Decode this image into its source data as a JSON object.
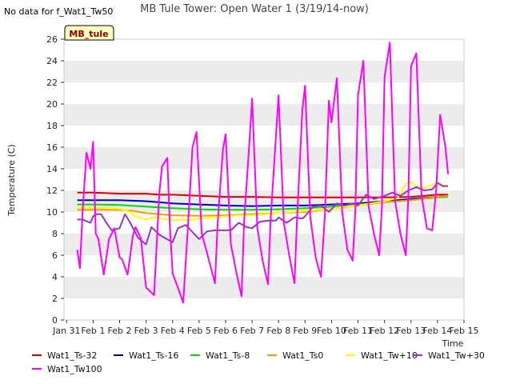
{
  "no_data_note": "No data for f_Wat1_Tw50",
  "site_badge": "MB_tule",
  "colors": {
    "band": "#ececec",
    "badge_fill": "#ffffc0",
    "series": {
      "Wat1_Ts-32": "#dd0000",
      "Wat1_Ts-16": "#0000cc",
      "Wat1_Ts-8": "#00dd00",
      "Wat1_Ts0": "#ff9900",
      "Wat1_Tw+10": "#ffff00",
      "Wat1_Tw+30": "#9933cc",
      "Wat1_Tw100": "#ff00ff"
    }
  },
  "chart_data": {
    "type": "line",
    "title": "MB Tule Tower: Open Water 1 (3/19/14-now)",
    "xlabel": "Time",
    "ylabel": "Temperature (C)",
    "xlim": [
      -0.1,
      15
    ],
    "ylim": [
      0,
      26
    ],
    "x_ticks": [
      0,
      1,
      2,
      3,
      4,
      5,
      6,
      7,
      8,
      9,
      10,
      11,
      12,
      13,
      14,
      15
    ],
    "x_tick_labels": [
      "Jan 31",
      "Feb 1",
      "Feb 2",
      "Feb 3",
      "Feb 4",
      "Feb 5",
      "Feb 6",
      "Feb 7",
      "Feb 8",
      "Feb 9",
      "Feb 10",
      "Feb 11",
      "Feb 12",
      "Feb 13",
      "Feb 14",
      "Feb 15"
    ],
    "y_ticks": [
      0,
      2,
      4,
      6,
      8,
      10,
      12,
      14,
      16,
      18,
      20,
      22,
      24,
      26
    ],
    "y_tick_labels": [
      "0",
      "2",
      "4",
      "6",
      "8",
      "10",
      "12",
      "14",
      "16",
      "18",
      "20",
      "22",
      "24",
      "26"
    ],
    "legend_position": "bottom",
    "series": [
      {
        "name": "Wat1_Ts-32",
        "x": [
          0.4,
          1,
          2,
          3,
          3.5,
          4,
          5,
          6,
          7,
          8,
          9,
          10,
          11,
          12,
          13,
          13.5,
          14,
          14.4
        ],
        "y": [
          11.8,
          11.8,
          11.7,
          11.7,
          11.6,
          11.6,
          11.5,
          11.4,
          11.4,
          11.35,
          11.35,
          11.35,
          11.35,
          11.35,
          11.4,
          11.5,
          11.6,
          11.6
        ]
      },
      {
        "name": "Wat1_Ts-16",
        "x": [
          0.4,
          1,
          2,
          3,
          4,
          5,
          6,
          7,
          8,
          9,
          10,
          11,
          12,
          13,
          14,
          14.4
        ],
        "y": [
          11.1,
          11.1,
          11.1,
          11.0,
          10.8,
          10.7,
          10.6,
          10.55,
          10.6,
          10.6,
          10.7,
          10.8,
          11.0,
          11.2,
          11.4,
          11.5
        ]
      },
      {
        "name": "Wat1_Ts-8",
        "x": [
          0.4,
          1,
          2,
          3,
          4,
          5,
          6,
          7,
          8,
          9,
          10,
          11,
          12,
          13,
          14,
          14.4
        ],
        "y": [
          10.7,
          10.7,
          10.65,
          10.5,
          10.35,
          10.25,
          10.2,
          10.2,
          10.25,
          10.35,
          10.5,
          10.7,
          10.9,
          11.1,
          11.35,
          11.4
        ]
      },
      {
        "name": "Wat1_Ts0",
        "x": [
          0.4,
          1,
          2,
          2.5,
          3,
          3.5,
          4,
          5,
          6,
          7,
          8,
          9,
          10,
          11,
          12,
          13,
          14,
          14.4
        ],
        "y": [
          10.2,
          10.2,
          10.2,
          10.1,
          9.9,
          9.8,
          9.7,
          9.65,
          9.7,
          9.8,
          9.9,
          10.0,
          10.3,
          10.6,
          10.9,
          11.1,
          11.4,
          11.5
        ]
      },
      {
        "name": "Wat1_Tw+10",
        "x": [
          0.4,
          1,
          2,
          2.3,
          2.6,
          3,
          3.3,
          3.6,
          4,
          4.3,
          4.6,
          5,
          5.5,
          6,
          6.5,
          7,
          7.5,
          8,
          8.5,
          9,
          9.5,
          10,
          10.5,
          11,
          11.5,
          12,
          12.5,
          12.8,
          13,
          13.2,
          13.5,
          13.8,
          14,
          14.2,
          14.4
        ],
        "y": [
          10.4,
          10.4,
          10.3,
          10.1,
          9.6,
          9.3,
          9.5,
          9.4,
          9.2,
          9.3,
          9.2,
          9.4,
          9.5,
          9.6,
          9.7,
          9.7,
          9.8,
          9.9,
          10.0,
          10.1,
          10.2,
          10.3,
          10.5,
          10.6,
          10.8,
          11.0,
          11.3,
          12.6,
          12.8,
          12.4,
          12.2,
          12.5,
          12.7,
          12.5,
          12.4
        ]
      },
      {
        "name": "Wat1_Tw+30",
        "x": [
          0.4,
          0.6,
          0.9,
          1.0,
          1.1,
          1.3,
          1.5,
          1.7,
          2.0,
          2.2,
          2.4,
          2.7,
          3.0,
          3.2,
          3.5,
          3.7,
          4.0,
          4.2,
          4.5,
          4.8,
          5.0,
          5.3,
          5.6,
          5.9,
          6.2,
          6.5,
          6.8,
          7.0,
          7.3,
          7.6,
          7.9,
          8.0,
          8.3,
          8.6,
          8.9,
          9.0,
          9.3,
          9.6,
          9.9,
          10.2,
          10.5,
          10.8,
          11.0,
          11.3,
          11.6,
          12.0,
          12.3,
          12.6,
          12.9,
          13.2,
          13.5,
          13.8,
          14.0,
          14.2,
          14.4
        ],
        "y": [
          9.3,
          9.3,
          9.0,
          9.6,
          9.8,
          9.8,
          9.0,
          8.3,
          8.5,
          9.8,
          9.0,
          7.6,
          7.0,
          8.6,
          7.9,
          7.6,
          7.2,
          8.5,
          8.8,
          8.0,
          7.5,
          8.2,
          8.3,
          8.3,
          8.3,
          9.0,
          8.6,
          8.5,
          9.1,
          9.2,
          9.2,
          9.5,
          9.0,
          9.5,
          9.4,
          9.6,
          10.5,
          10.6,
          10.0,
          10.8,
          10.6,
          10.8,
          10.6,
          11.6,
          11.2,
          11.5,
          11.8,
          11.5,
          12.0,
          12.3,
          12.0,
          12.1,
          12.7,
          12.4,
          12.4
        ]
      },
      {
        "name": "Wat1_Tw100",
        "x": [
          0.4,
          0.5,
          0.6,
          0.75,
          0.9,
          1.0,
          1.1,
          1.2,
          1.4,
          1.6,
          1.8,
          2.0,
          2.1,
          2.3,
          2.5,
          2.6,
          2.8,
          3.0,
          3.3,
          3.5,
          3.6,
          3.8,
          3.9,
          4.0,
          4.2,
          4.4,
          4.6,
          4.75,
          4.9,
          5.1,
          5.3,
          5.6,
          5.7,
          5.9,
          6.0,
          6.2,
          6.4,
          6.6,
          6.7,
          6.9,
          7.0,
          7.2,
          7.4,
          7.6,
          7.7,
          7.9,
          8.0,
          8.2,
          8.4,
          8.6,
          8.7,
          8.9,
          9.0,
          9.2,
          9.4,
          9.6,
          9.75,
          9.9,
          10.0,
          10.2,
          10.4,
          10.6,
          10.8,
          10.9,
          11.0,
          11.2,
          11.4,
          11.6,
          11.8,
          11.9,
          12.0,
          12.2,
          12.4,
          12.6,
          12.8,
          12.9,
          13.0,
          13.2,
          13.4,
          13.6,
          13.8,
          13.95,
          14.1,
          14.3,
          14.4
        ],
        "y": [
          6.5,
          4.8,
          10.0,
          15.5,
          14.0,
          16.5,
          8.0,
          7.5,
          4.2,
          7.5,
          8.5,
          5.8,
          5.6,
          4.2,
          7.8,
          8.6,
          7.6,
          3.0,
          2.3,
          11.8,
          14.2,
          15.0,
          8.5,
          4.3,
          3.0,
          1.6,
          9.5,
          16.0,
          17.4,
          8.0,
          6.2,
          3.4,
          9.0,
          15.8,
          17.2,
          7.0,
          4.5,
          2.2,
          9.2,
          16.5,
          20.5,
          8.5,
          5.5,
          3.3,
          9.3,
          17.0,
          20.8,
          9.0,
          6.0,
          3.4,
          9.5,
          19.5,
          21.7,
          9.5,
          5.8,
          4.0,
          9.8,
          20.3,
          18.3,
          22.4,
          10.0,
          6.5,
          5.5,
          10.2,
          20.8,
          24.0,
          10.5,
          8.0,
          6.0,
          10.5,
          22.5,
          25.7,
          11.0,
          8.0,
          6.0,
          11.5,
          23.5,
          24.7,
          11.5,
          8.5,
          8.3,
          12.0,
          19.0,
          16.0,
          13.5
        ]
      }
    ]
  }
}
